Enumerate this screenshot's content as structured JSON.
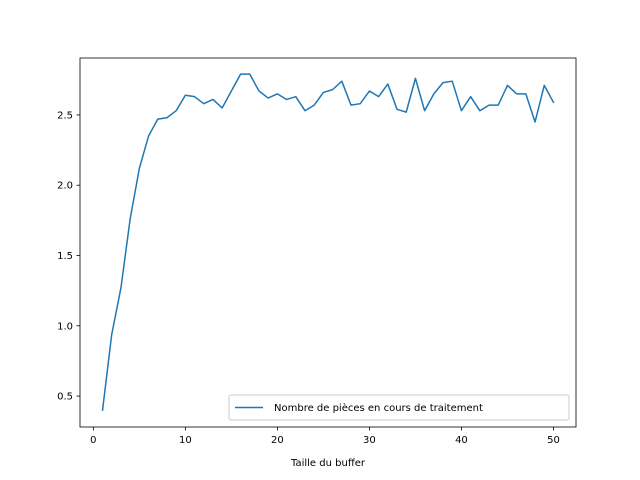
{
  "chart_data": {
    "type": "line",
    "title": "",
    "xlabel": "Taille du buffer",
    "ylabel": "",
    "xlim": [
      -1.45,
      52.45
    ],
    "ylim": [
      0.28,
      2.905
    ],
    "xticks": [
      0,
      10,
      20,
      30,
      40,
      50
    ],
    "yticks": [
      0.5,
      1.0,
      1.5,
      2.0,
      2.5
    ],
    "ytick_labels": [
      "0.5",
      "1.0",
      "1.5",
      "2.0",
      "2.5"
    ],
    "grid": false,
    "legend_position": "lower right",
    "series": [
      {
        "name": "Nombre de pièces en cours de traitement",
        "color": "#1f77b4",
        "x": [
          1,
          2,
          3,
          4,
          5,
          6,
          7,
          8,
          9,
          10,
          11,
          12,
          13,
          14,
          15,
          16,
          17,
          18,
          19,
          20,
          21,
          22,
          23,
          24,
          25,
          26,
          27,
          28,
          29,
          30,
          31,
          32,
          33,
          34,
          35,
          36,
          37,
          38,
          39,
          40,
          41,
          42,
          43,
          44,
          45,
          46,
          47,
          48,
          49,
          50
        ],
        "y": [
          0.4,
          0.94,
          1.27,
          1.76,
          2.12,
          2.35,
          2.47,
          2.48,
          2.53,
          2.64,
          2.63,
          2.58,
          2.61,
          2.55,
          2.67,
          2.79,
          2.79,
          2.67,
          2.62,
          2.65,
          2.61,
          2.63,
          2.53,
          2.57,
          2.66,
          2.68,
          2.74,
          2.57,
          2.58,
          2.67,
          2.63,
          2.72,
          2.54,
          2.52,
          2.76,
          2.53,
          2.65,
          2.73,
          2.74,
          2.53,
          2.63,
          2.53,
          2.57,
          2.57,
          2.71,
          2.65,
          2.65,
          2.45,
          2.71,
          2.59
        ]
      }
    ]
  }
}
